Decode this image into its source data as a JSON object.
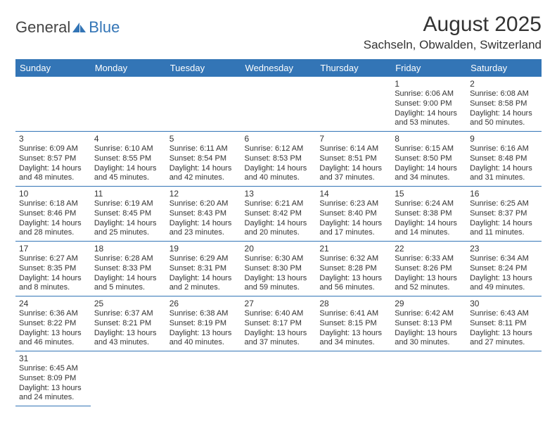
{
  "header": {
    "logo_text1": "General",
    "logo_text2": "Blue",
    "month_title": "August 2025",
    "location": "Sachseln, Obwalden, Switzerland"
  },
  "colors": {
    "brand_blue": "#3375b6",
    "text": "#333333",
    "logo_gray": "#444444",
    "white": "#ffffff"
  },
  "calendar": {
    "day_headers": [
      "Sunday",
      "Monday",
      "Tuesday",
      "Wednesday",
      "Thursday",
      "Friday",
      "Saturday"
    ],
    "weeks": [
      [
        null,
        null,
        null,
        null,
        null,
        {
          "n": "1",
          "sr": "Sunrise: 6:06 AM",
          "ss": "Sunset: 9:00 PM",
          "d1": "Daylight: 14 hours",
          "d2": "and 53 minutes."
        },
        {
          "n": "2",
          "sr": "Sunrise: 6:08 AM",
          "ss": "Sunset: 8:58 PM",
          "d1": "Daylight: 14 hours",
          "d2": "and 50 minutes."
        }
      ],
      [
        {
          "n": "3",
          "sr": "Sunrise: 6:09 AM",
          "ss": "Sunset: 8:57 PM",
          "d1": "Daylight: 14 hours",
          "d2": "and 48 minutes."
        },
        {
          "n": "4",
          "sr": "Sunrise: 6:10 AM",
          "ss": "Sunset: 8:55 PM",
          "d1": "Daylight: 14 hours",
          "d2": "and 45 minutes."
        },
        {
          "n": "5",
          "sr": "Sunrise: 6:11 AM",
          "ss": "Sunset: 8:54 PM",
          "d1": "Daylight: 14 hours",
          "d2": "and 42 minutes."
        },
        {
          "n": "6",
          "sr": "Sunrise: 6:12 AM",
          "ss": "Sunset: 8:53 PM",
          "d1": "Daylight: 14 hours",
          "d2": "and 40 minutes."
        },
        {
          "n": "7",
          "sr": "Sunrise: 6:14 AM",
          "ss": "Sunset: 8:51 PM",
          "d1": "Daylight: 14 hours",
          "d2": "and 37 minutes."
        },
        {
          "n": "8",
          "sr": "Sunrise: 6:15 AM",
          "ss": "Sunset: 8:50 PM",
          "d1": "Daylight: 14 hours",
          "d2": "and 34 minutes."
        },
        {
          "n": "9",
          "sr": "Sunrise: 6:16 AM",
          "ss": "Sunset: 8:48 PM",
          "d1": "Daylight: 14 hours",
          "d2": "and 31 minutes."
        }
      ],
      [
        {
          "n": "10",
          "sr": "Sunrise: 6:18 AM",
          "ss": "Sunset: 8:46 PM",
          "d1": "Daylight: 14 hours",
          "d2": "and 28 minutes."
        },
        {
          "n": "11",
          "sr": "Sunrise: 6:19 AM",
          "ss": "Sunset: 8:45 PM",
          "d1": "Daylight: 14 hours",
          "d2": "and 25 minutes."
        },
        {
          "n": "12",
          "sr": "Sunrise: 6:20 AM",
          "ss": "Sunset: 8:43 PM",
          "d1": "Daylight: 14 hours",
          "d2": "and 23 minutes."
        },
        {
          "n": "13",
          "sr": "Sunrise: 6:21 AM",
          "ss": "Sunset: 8:42 PM",
          "d1": "Daylight: 14 hours",
          "d2": "and 20 minutes."
        },
        {
          "n": "14",
          "sr": "Sunrise: 6:23 AM",
          "ss": "Sunset: 8:40 PM",
          "d1": "Daylight: 14 hours",
          "d2": "and 17 minutes."
        },
        {
          "n": "15",
          "sr": "Sunrise: 6:24 AM",
          "ss": "Sunset: 8:38 PM",
          "d1": "Daylight: 14 hours",
          "d2": "and 14 minutes."
        },
        {
          "n": "16",
          "sr": "Sunrise: 6:25 AM",
          "ss": "Sunset: 8:37 PM",
          "d1": "Daylight: 14 hours",
          "d2": "and 11 minutes."
        }
      ],
      [
        {
          "n": "17",
          "sr": "Sunrise: 6:27 AM",
          "ss": "Sunset: 8:35 PM",
          "d1": "Daylight: 14 hours",
          "d2": "and 8 minutes."
        },
        {
          "n": "18",
          "sr": "Sunrise: 6:28 AM",
          "ss": "Sunset: 8:33 PM",
          "d1": "Daylight: 14 hours",
          "d2": "and 5 minutes."
        },
        {
          "n": "19",
          "sr": "Sunrise: 6:29 AM",
          "ss": "Sunset: 8:31 PM",
          "d1": "Daylight: 14 hours",
          "d2": "and 2 minutes."
        },
        {
          "n": "20",
          "sr": "Sunrise: 6:30 AM",
          "ss": "Sunset: 8:30 PM",
          "d1": "Daylight: 13 hours",
          "d2": "and 59 minutes."
        },
        {
          "n": "21",
          "sr": "Sunrise: 6:32 AM",
          "ss": "Sunset: 8:28 PM",
          "d1": "Daylight: 13 hours",
          "d2": "and 56 minutes."
        },
        {
          "n": "22",
          "sr": "Sunrise: 6:33 AM",
          "ss": "Sunset: 8:26 PM",
          "d1": "Daylight: 13 hours",
          "d2": "and 52 minutes."
        },
        {
          "n": "23",
          "sr": "Sunrise: 6:34 AM",
          "ss": "Sunset: 8:24 PM",
          "d1": "Daylight: 13 hours",
          "d2": "and 49 minutes."
        }
      ],
      [
        {
          "n": "24",
          "sr": "Sunrise: 6:36 AM",
          "ss": "Sunset: 8:22 PM",
          "d1": "Daylight: 13 hours",
          "d2": "and 46 minutes."
        },
        {
          "n": "25",
          "sr": "Sunrise: 6:37 AM",
          "ss": "Sunset: 8:21 PM",
          "d1": "Daylight: 13 hours",
          "d2": "and 43 minutes."
        },
        {
          "n": "26",
          "sr": "Sunrise: 6:38 AM",
          "ss": "Sunset: 8:19 PM",
          "d1": "Daylight: 13 hours",
          "d2": "and 40 minutes."
        },
        {
          "n": "27",
          "sr": "Sunrise: 6:40 AM",
          "ss": "Sunset: 8:17 PM",
          "d1": "Daylight: 13 hours",
          "d2": "and 37 minutes."
        },
        {
          "n": "28",
          "sr": "Sunrise: 6:41 AM",
          "ss": "Sunset: 8:15 PM",
          "d1": "Daylight: 13 hours",
          "d2": "and 34 minutes."
        },
        {
          "n": "29",
          "sr": "Sunrise: 6:42 AM",
          "ss": "Sunset: 8:13 PM",
          "d1": "Daylight: 13 hours",
          "d2": "and 30 minutes."
        },
        {
          "n": "30",
          "sr": "Sunrise: 6:43 AM",
          "ss": "Sunset: 8:11 PM",
          "d1": "Daylight: 13 hours",
          "d2": "and 27 minutes."
        }
      ],
      [
        {
          "n": "31",
          "sr": "Sunrise: 6:45 AM",
          "ss": "Sunset: 8:09 PM",
          "d1": "Daylight: 13 hours",
          "d2": "and 24 minutes."
        },
        null,
        null,
        null,
        null,
        null,
        null
      ]
    ]
  }
}
